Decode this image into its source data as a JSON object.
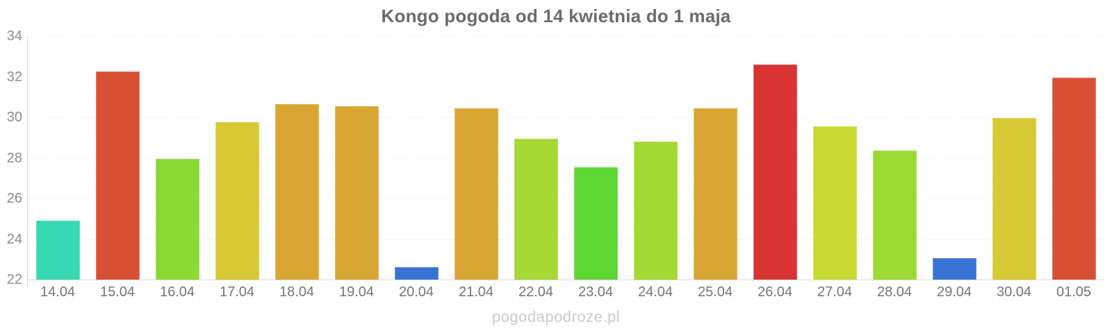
{
  "title": "Kongo pogoda od 14 kwietnia do 1 maja",
  "watermark": "pogodapodroze.pl",
  "colors": {
    "title_text": "#6b6b6b",
    "axis_label_text": "#8c8c8c",
    "x_label_text": "#757575",
    "axis_line": "#d6d6d6",
    "gridline": "#eaeae8",
    "watermark_text": "#cbcbc6",
    "background": "#ffffff"
  },
  "chart_data": {
    "type": "bar",
    "title": "Kongo pogoda od 14 kwietnia do 1 maja",
    "xlabel": "",
    "ylabel": "",
    "ylim": [
      22,
      34
    ],
    "yticks": [
      22,
      24,
      26,
      28,
      30,
      32,
      34
    ],
    "grid": "horizontal-dotted",
    "legend": "none",
    "categories": [
      "14.04",
      "15.04",
      "16.04",
      "17.04",
      "18.04",
      "19.04",
      "20.04",
      "21.04",
      "22.04",
      "23.04",
      "24.04",
      "25.04",
      "26.04",
      "27.04",
      "28.04",
      "29.04",
      "30.04",
      "01.05"
    ],
    "values": [
      24.9,
      32.25,
      27.95,
      29.75,
      30.65,
      30.55,
      22.6,
      30.45,
      28.95,
      27.55,
      28.8,
      30.45,
      32.6,
      29.55,
      28.35,
      23.05,
      29.95,
      31.95
    ],
    "bar_colors": [
      "#36d9b2",
      "#d94f33",
      "#8bd933",
      "#d6c933",
      "#d9a633",
      "#d9a633",
      "#3973d6",
      "#d9a633",
      "#a6d933",
      "#5ed633",
      "#a3d933",
      "#d9a633",
      "#d93333",
      "#c9d933",
      "#9bd933",
      "#3973d6",
      "#d6c933",
      "#d94f33"
    ],
    "color_meaning": "temperature scale: blue=coldest, teal/green=mild, yellow/orange=warm, red=hottest"
  }
}
